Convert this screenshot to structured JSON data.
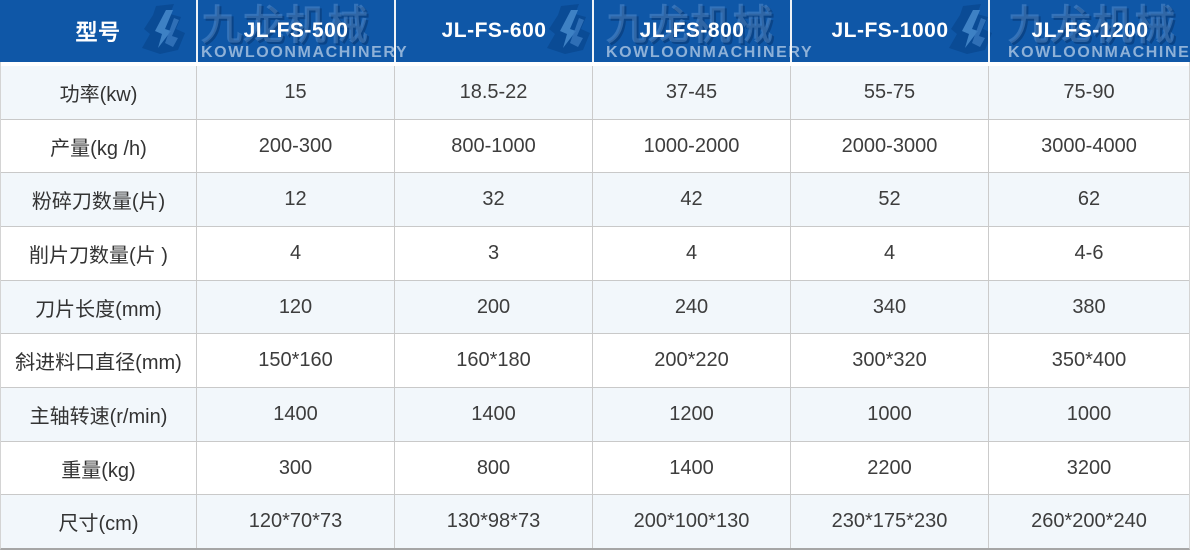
{
  "header": {
    "model_column_label": "型号",
    "models": [
      "JL-FS-500",
      "JL-FS-600",
      "JL-FS-800",
      "JL-FS-1000",
      "JL-FS-1200"
    ]
  },
  "rows": [
    {
      "label": "功率(kw)",
      "values": [
        "15",
        "18.5-22",
        "37-45",
        "55-75",
        "75-90"
      ]
    },
    {
      "label": "产量(kg /h)",
      "values": [
        "200-300",
        "800-1000",
        "1000-2000",
        "2000-3000",
        "3000-4000"
      ]
    },
    {
      "label": "粉碎刀数量(片)",
      "values": [
        "12",
        "32",
        "42",
        "52",
        "62"
      ]
    },
    {
      "label": "削片刀数量(片 )",
      "values": [
        "4",
        "3",
        "4",
        "4",
        "4-6"
      ]
    },
    {
      "label": "刀片长度(mm)",
      "values": [
        "120",
        "200",
        "240",
        "340",
        "380"
      ]
    },
    {
      "label": "斜进料口直径(mm)",
      "values": [
        "150*160",
        "160*180",
        "200*220",
        "300*320",
        "350*400"
      ]
    },
    {
      "label": "主轴转速(r/min)",
      "values": [
        "1400",
        "1400",
        "1200",
        "1000",
        "1000"
      ]
    },
    {
      "label": "重量(kg)",
      "values": [
        "300",
        "800",
        "1400",
        "2200",
        "3200"
      ]
    },
    {
      "label": "尺寸(cm)",
      "values": [
        "120*70*73",
        "130*98*73",
        "200*100*130",
        "230*175*230",
        "260*200*240"
      ]
    }
  ],
  "watermark": {
    "brand_cn": "九龙机械",
    "brand_en": "KOWLOONMACHINERY"
  },
  "colors": {
    "header_bg": "#0f57a7",
    "alt_row_bg": "#f2f7fb",
    "row_bg": "#ffffff",
    "grid_line": "#c9c9c9",
    "header_text": "#ffffff",
    "body_text": "#3d3d3d"
  }
}
